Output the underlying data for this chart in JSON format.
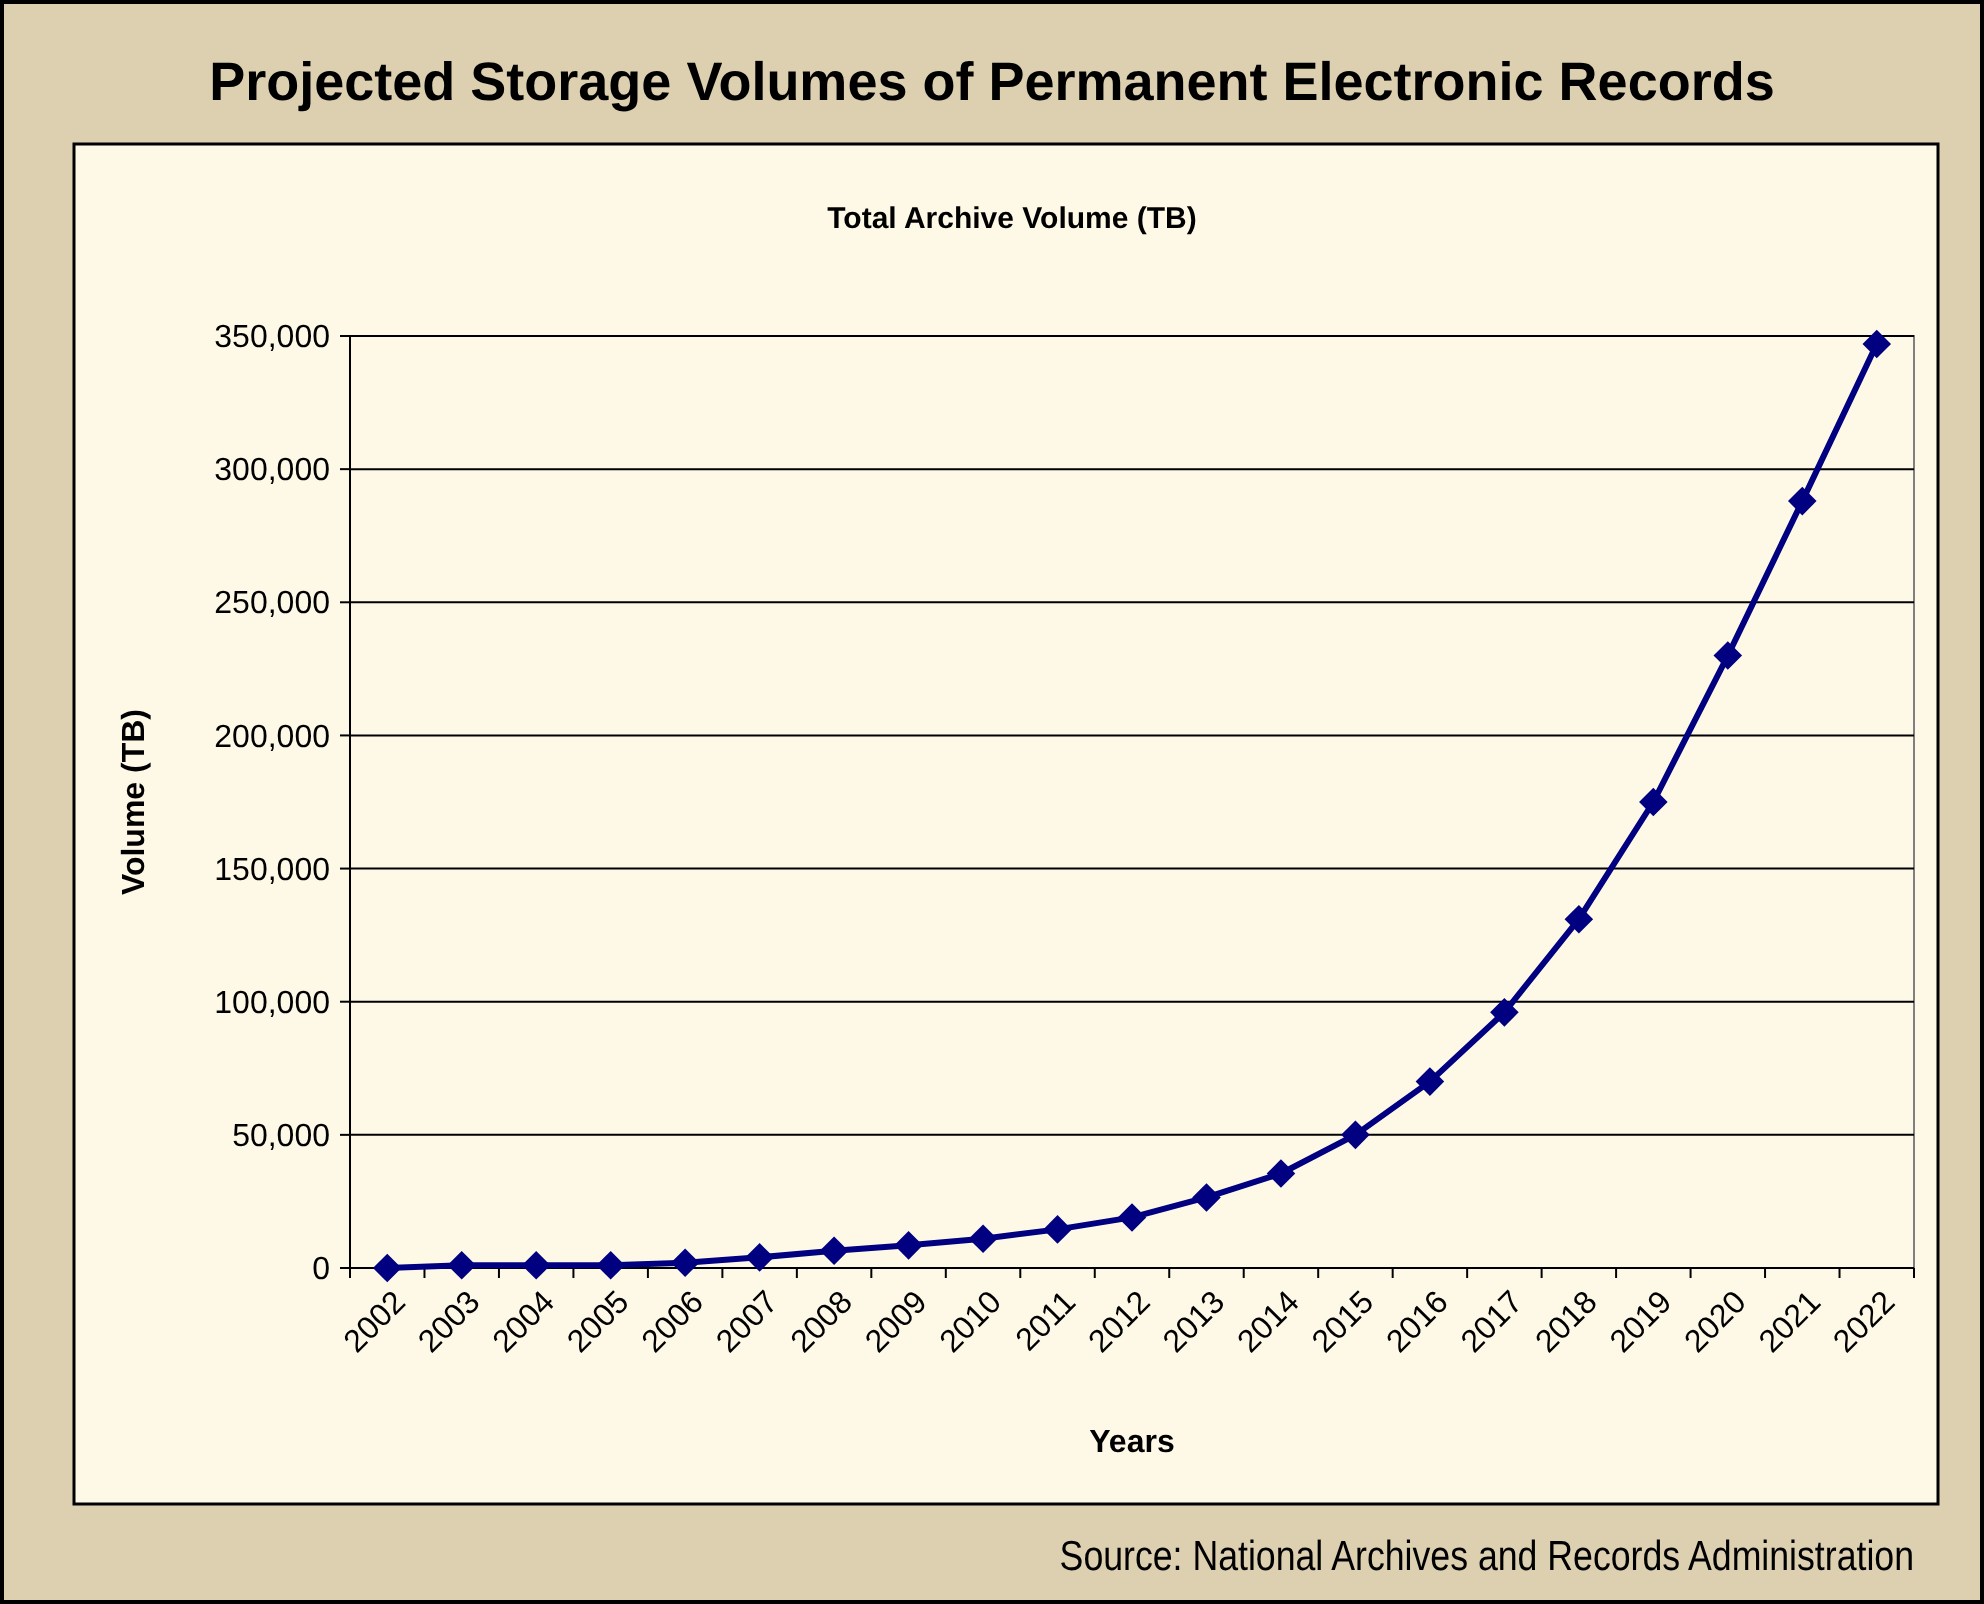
{
  "chart_data": {
    "type": "line",
    "title": "Projected Storage Volumes of Permanent Electronic Records",
    "subtitle": "Total Archive Volume (TB)",
    "xlabel": "Years",
    "ylabel": "Volume (TB)",
    "categories": [
      "2002",
      "2003",
      "2004",
      "2005",
      "2006",
      "2007",
      "2008",
      "2009",
      "2010",
      "2011",
      "2012",
      "2013",
      "2014",
      "2015",
      "2016",
      "2017",
      "2018",
      "2019",
      "2020",
      "2021",
      "2022"
    ],
    "series": [
      {
        "color": "#000080",
        "values": [
          0,
          1000,
          1000,
          1000,
          2000,
          4000,
          6500,
          8500,
          11000,
          14500,
          19000,
          26500,
          35500,
          50000,
          70000,
          96000,
          131000,
          175000,
          230000,
          288000,
          347000
        ]
      }
    ],
    "ylim": [
      0,
      350000
    ],
    "yticks": [
      {
        "value": 0,
        "label": "0"
      },
      {
        "value": 50000,
        "label": "50,000"
      },
      {
        "value": 100000,
        "label": "100,000"
      },
      {
        "value": 150000,
        "label": "150,000"
      },
      {
        "value": 200000,
        "label": "200,000"
      },
      {
        "value": 250000,
        "label": "250,000"
      },
      {
        "value": 300000,
        "label": "300,000"
      },
      {
        "value": 350000,
        "label": "350,000"
      }
    ],
    "grid": "y",
    "marker": "diamond",
    "line_style": "solid",
    "annotations": [
      "Source: National Archives and Records Administration"
    ]
  }
}
